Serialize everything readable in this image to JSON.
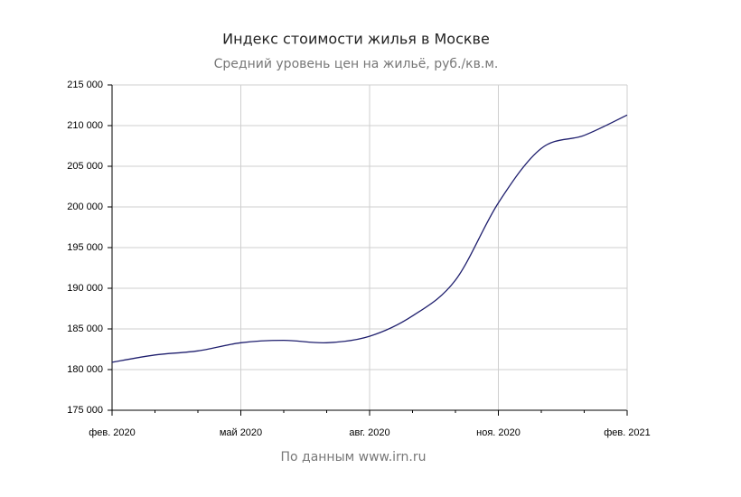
{
  "chart_data": {
    "type": "line",
    "title": "Индекс стоимости жилья в Москве",
    "subtitle": "Средний уровень цен на жильё, руб./кв.м.",
    "source": "По данным www.irn.ru",
    "x": [
      "2020-02",
      "2020-03",
      "2020-04",
      "2020-05",
      "2020-06",
      "2020-07",
      "2020-08",
      "2020-09",
      "2020-10",
      "2020-11",
      "2020-12",
      "2021-01",
      "2021-02"
    ],
    "series": [
      {
        "name": "Индекс стоимости жилья",
        "color": "#1f1f6e",
        "values": [
          180900,
          181800,
          182300,
          183300,
          183600,
          183300,
          184100,
          186600,
          191000,
          200500,
          207200,
          208800,
          211300
        ]
      }
    ],
    "xlim": [
      "2020-02",
      "2021-02"
    ],
    "xticks": [
      {
        "value": "2020-02",
        "label": "фев. 2020"
      },
      {
        "value": "2020-05",
        "label": "май 2020"
      },
      {
        "value": "2020-08",
        "label": "авг. 2020"
      },
      {
        "value": "2020-11",
        "label": "ноя. 2020"
      },
      {
        "value": "2021-02",
        "label": "фев. 2021"
      }
    ],
    "ylim": [
      175000,
      215000
    ],
    "yticks": [
      {
        "value": 175000,
        "label": "175 000"
      },
      {
        "value": 180000,
        "label": "180 000"
      },
      {
        "value": 185000,
        "label": "185 000"
      },
      {
        "value": 190000,
        "label": "190 000"
      },
      {
        "value": 195000,
        "label": "195 000"
      },
      {
        "value": 200000,
        "label": "200 000"
      },
      {
        "value": 205000,
        "label": "205 000"
      },
      {
        "value": 210000,
        "label": "210 000"
      },
      {
        "value": 215000,
        "label": "215 000"
      }
    ],
    "grid": true
  }
}
